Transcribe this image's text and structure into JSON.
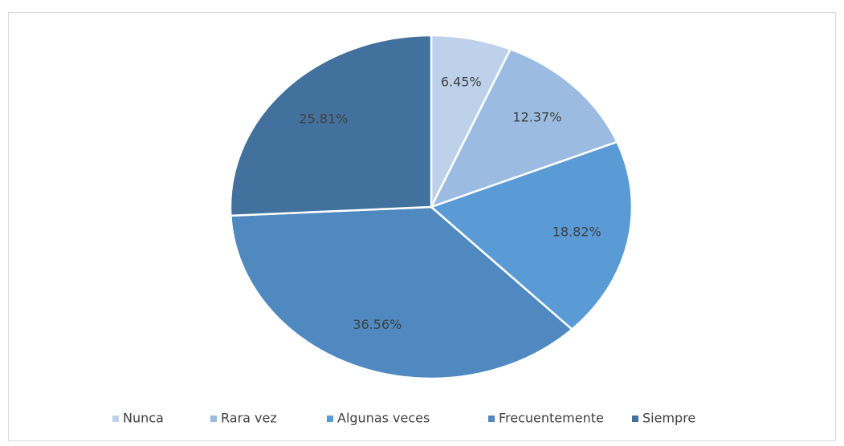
{
  "chart_data": {
    "type": "pie",
    "categories": [
      "Nunca",
      "Rara vez",
      "Algunas veces",
      "Frecuentemente",
      "Siempre"
    ],
    "values": [
      6.45,
      12.37,
      18.82,
      36.56,
      25.81
    ],
    "value_labels": [
      "6.45%",
      "12.37%",
      "18.82%",
      "36.56%",
      "25.81%"
    ],
    "colors": [
      "#bdd1ea",
      "#9bbbe0",
      "#5b9bd5",
      "#4f89c0",
      "#41719c"
    ],
    "legend": "bottom"
  }
}
